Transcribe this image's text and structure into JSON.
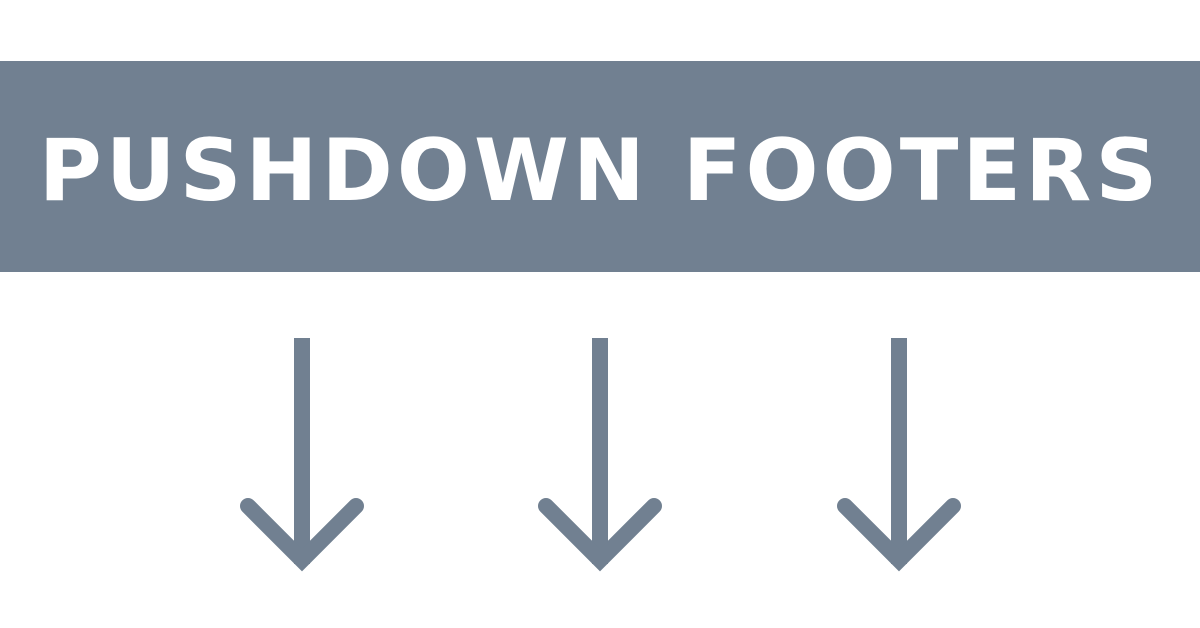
{
  "banner": {
    "title": "PUSHDOWN FOOTERS",
    "background_color": "#718091",
    "text_color": "#ffffff"
  },
  "arrows": {
    "count": 3,
    "icon": "arrow-down-icon",
    "color": "#718091"
  },
  "background_color": "#ffffff"
}
